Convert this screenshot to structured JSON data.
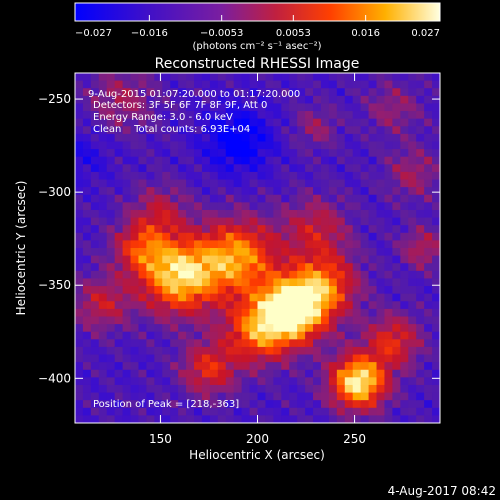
{
  "chart_data": {
    "type": "heatmap",
    "title": "Reconstructed RHESSI Image",
    "xlabel": "Heliocentric X (arcsec)",
    "ylabel": "Heliocentric Y (arcsec)",
    "xlim": [
      106,
      294
    ],
    "ylim": [
      -424,
      -236
    ],
    "x_ticks": [
      150,
      200,
      250
    ],
    "y_ticks": [
      -250,
      -300,
      -350,
      -400
    ],
    "colorbar": {
      "range": [
        -0.027,
        0.027
      ],
      "tick_labels": [
        "-0.027",
        "-0.016",
        "-0.0053",
        "0.0053",
        "0.016",
        "0.027"
      ],
      "unit_label": "(photons cm⁻² s⁻¹ asec⁻²)"
    },
    "annotations": {
      "time_range": "9-Aug-2015 01:07:20.000 to 01:17:20.000",
      "detectors": "Detectors: 3F 5F 6F 7F 8F 9F, Att 0",
      "energy_range": "Energy Range: 3.0 - 6.0 keV",
      "clean": "Clean    Total counts: 6.93E+04",
      "peak": "Position of Peak = [218,-363]"
    },
    "peak_position": [
      218,
      -363
    ]
  },
  "footer": {
    "timestamp": "4-Aug-2017 08:42"
  }
}
